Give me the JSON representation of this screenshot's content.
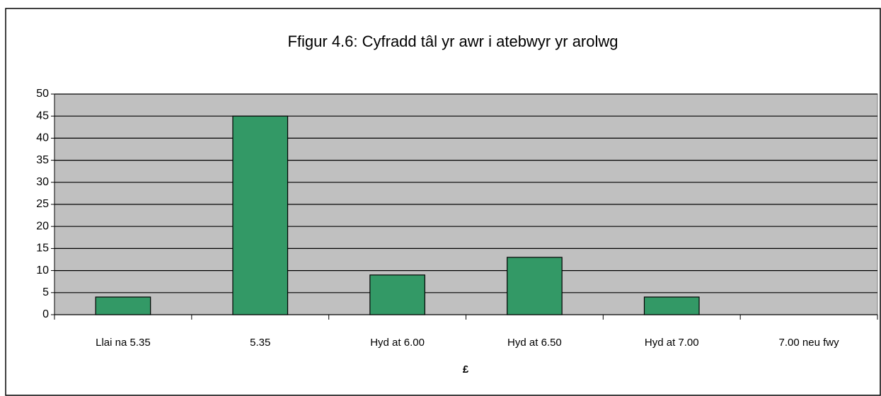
{
  "chart_data": {
    "type": "bar",
    "title": "Ffigur 4.6: Cyfradd tâl yr awr i atebwyr yr arolwg",
    "x_label": "£",
    "categories": [
      "Llai na 5.35",
      "5.35",
      "Hyd at 6.00",
      "Hyd at 6.50",
      "Hyd at 7.00",
      "7.00 neu fwy"
    ],
    "values": [
      4,
      45,
      9,
      13,
      4,
      0
    ],
    "color": "#339966",
    "ylim": [
      0,
      50
    ],
    "yticks": [
      0,
      5,
      10,
      15,
      20,
      25,
      30,
      35,
      40,
      45,
      50
    ],
    "grid": true
  }
}
